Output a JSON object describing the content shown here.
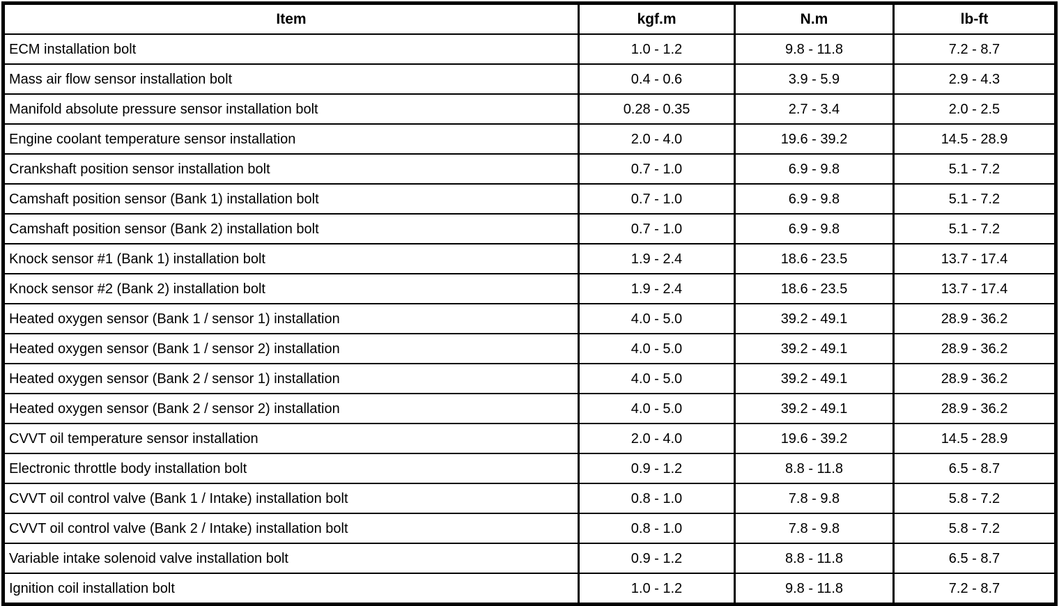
{
  "table": {
    "columns": [
      "Item",
      "kgf.m",
      "N.m",
      "lb-ft"
    ],
    "rows": [
      [
        "ECM installation bolt",
        "1.0 - 1.2",
        "9.8 - 11.8",
        "7.2 - 8.7"
      ],
      [
        "Mass air flow sensor installation bolt",
        "0.4 - 0.6",
        "3.9 - 5.9",
        "2.9 - 4.3"
      ],
      [
        "Manifold absolute pressure sensor installation bolt",
        "0.28 - 0.35",
        "2.7 - 3.4",
        "2.0 - 2.5"
      ],
      [
        "Engine coolant temperature sensor installation",
        "2.0 - 4.0",
        "19.6 - 39.2",
        "14.5 - 28.9"
      ],
      [
        "Crankshaft position sensor installation bolt",
        "0.7 - 1.0",
        "6.9 - 9.8",
        "5.1 - 7.2"
      ],
      [
        "Camshaft position sensor (Bank 1) installation bolt",
        "0.7 - 1.0",
        "6.9 - 9.8",
        "5.1 - 7.2"
      ],
      [
        "Camshaft position sensor (Bank 2) installation bolt",
        "0.7 - 1.0",
        "6.9 - 9.8",
        "5.1 - 7.2"
      ],
      [
        "Knock sensor #1 (Bank 1) installation bolt",
        "1.9 - 2.4",
        "18.6 - 23.5",
        "13.7 - 17.4"
      ],
      [
        "Knock sensor #2 (Bank 2) installation bolt",
        "1.9 - 2.4",
        "18.6 - 23.5",
        "13.7 - 17.4"
      ],
      [
        "Heated oxygen sensor (Bank 1 / sensor 1) installation",
        "4.0 - 5.0",
        "39.2 - 49.1",
        "28.9 - 36.2"
      ],
      [
        "Heated oxygen sensor (Bank 1 / sensor 2) installation",
        "4.0 - 5.0",
        "39.2 - 49.1",
        "28.9 - 36.2"
      ],
      [
        "Heated oxygen sensor (Bank 2 / sensor 1) installation",
        "4.0 - 5.0",
        "39.2 - 49.1",
        "28.9 - 36.2"
      ],
      [
        "Heated oxygen sensor (Bank 2 / sensor 2) installation",
        "4.0 - 5.0",
        "39.2 - 49.1",
        "28.9 - 36.2"
      ],
      [
        "CVVT oil temperature sensor installation",
        "2.0 - 4.0",
        "19.6 - 39.2",
        "14.5 - 28.9"
      ],
      [
        "Electronic throttle body installation bolt",
        "0.9 - 1.2",
        "8.8 - 11.8",
        "6.5 - 8.7"
      ],
      [
        "CVVT oil control valve (Bank 1 / Intake) installation bolt",
        "0.8 - 1.0",
        "7.8 - 9.8",
        "5.8 - 7.2"
      ],
      [
        "CVVT oil control valve (Bank 2 / Intake) installation bolt",
        "0.8 - 1.0",
        "7.8 - 9.8",
        "5.8 - 7.2"
      ],
      [
        "Variable intake solenoid valve installation bolt",
        "0.9 - 1.2",
        "8.8 - 11.8",
        "6.5 - 8.7"
      ],
      [
        "Ignition coil installation bolt",
        "1.0 - 1.2",
        "9.8 - 11.8",
        "7.2 - 8.7"
      ]
    ]
  }
}
